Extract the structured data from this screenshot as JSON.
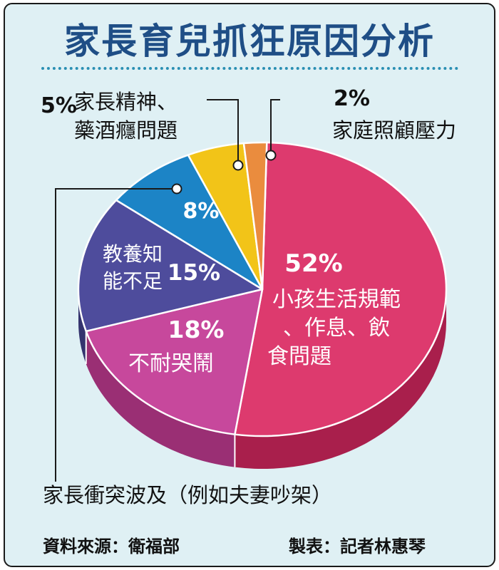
{
  "title": "家長育兒抓狂原因分析",
  "source": "資料來源：衛福部",
  "maker": "製表：記者林惠琴",
  "chart_data": {
    "type": "pie",
    "title": "家長育兒抓狂原因分析",
    "slices": [
      {
        "value": 52,
        "pct": "52%",
        "label": [
          "小孩生活規範",
          "、作息、飲",
          "食問題"
        ],
        "color": "#dd3a6e",
        "side": "#a91f4c"
      },
      {
        "value": 18,
        "pct": "18%",
        "label": [
          "不耐哭鬧"
        ],
        "color": "#c7489c",
        "side": "#9a2f74"
      },
      {
        "value": 15,
        "pct": "15%",
        "label": [
          "教養知",
          "能不足"
        ],
        "color": "#4e4c9c",
        "side": "#34336e"
      },
      {
        "value": 8,
        "pct": "8%",
        "label": [
          "家長衝突波及（例如夫妻吵架）"
        ],
        "color": "#1c84c6",
        "side": "#146396"
      },
      {
        "value": 5,
        "pct": "5%",
        "label": [
          "家長精神、",
          "藥酒癮問題"
        ],
        "color": "#f2c418",
        "side": "#c79e0d"
      },
      {
        "value": 2,
        "pct": "2%",
        "label": [
          "家庭照顧壓力"
        ],
        "color": "#ea8c3e",
        "side": "#bf6a25"
      }
    ]
  }
}
